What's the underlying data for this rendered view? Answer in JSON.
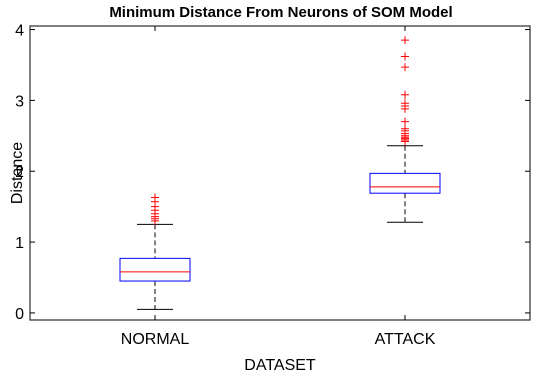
{
  "chart_data": {
    "type": "boxplot",
    "title": "Minimum Distance From Neurons of SOM Model",
    "xlabel": "DATASET",
    "ylabel": "Distance",
    "categories": [
      "NORMAL",
      "ATTACK"
    ],
    "ylim": [
      -0.1,
      4.05
    ],
    "yticks": [
      0,
      1,
      2,
      3,
      4
    ],
    "grid": false,
    "colors": {
      "box": "#0000ff",
      "median": "#ff0000",
      "whisker": "#000000",
      "outlier": "#ff0000"
    },
    "boxes": [
      {
        "category": "NORMAL",
        "whisker_low": 0.05,
        "q1": 0.45,
        "median": 0.58,
        "q3": 0.77,
        "whisker_high": 1.25,
        "outliers": [
          1.3,
          1.33,
          1.36,
          1.4,
          1.45,
          1.5,
          1.57,
          1.63
        ]
      },
      {
        "category": "ATTACK",
        "whisker_low": 1.28,
        "q1": 1.69,
        "median": 1.78,
        "q3": 1.97,
        "whisker_high": 2.36,
        "outliers": [
          2.42,
          2.44,
          2.46,
          2.48,
          2.5,
          2.53,
          2.57,
          2.6,
          2.7,
          2.88,
          2.92,
          2.96,
          3.08,
          3.47,
          3.62,
          3.85
        ]
      }
    ]
  }
}
